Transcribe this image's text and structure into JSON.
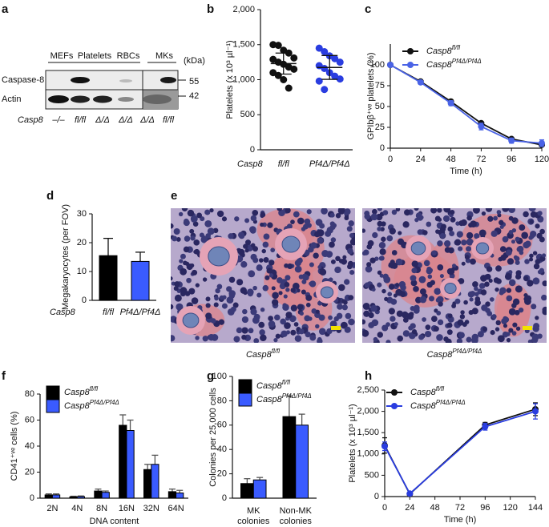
{
  "blot": {
    "panel": "a",
    "groups": [
      "MEFs",
      "Platelets",
      "RBCs",
      "MKs"
    ],
    "unit": "(kDa)",
    "rows": [
      "Caspase-8",
      "Actin"
    ],
    "markers": [
      "55",
      "42"
    ],
    "genotype_label": "Casp8",
    "lanes": [
      "–/–",
      "fl/fl",
      "Δ/Δ",
      "Δ/Δ",
      "Δ/Δ",
      "fl/fl"
    ]
  },
  "micrographs": {
    "panel": "e",
    "captions": [
      {
        "name": "Casp8",
        "superscript": "fl/fl"
      },
      {
        "name": "Casp8",
        "superscript": "Pf4Δ/Pf4Δ"
      }
    ]
  },
  "chart_data": [
    {
      "panel": "b",
      "type": "dot",
      "y_label": "Platelets (x 10³ µl⁻¹)",
      "row_label": "Casp8",
      "categories": [
        "fl/fl",
        "Pf4Δ/Pf4Δ"
      ],
      "colors": [
        "#111111",
        "#2a3de0"
      ],
      "points": [
        [
          1500,
          1490,
          1420,
          1380,
          1310,
          1290,
          1250,
          1220,
          1180,
          1150,
          1100,
          1060,
          1000,
          880
        ],
        [
          1450,
          1400,
          1340,
          1300,
          1250,
          1200,
          1160,
          1100,
          1050,
          1010,
          980,
          860
        ]
      ],
      "means": [
        1230,
        1175
      ],
      "sd": [
        150,
        170
      ],
      "ylim": [
        0,
        2000
      ],
      "yticks": [
        0,
        500,
        {
          "value": 1000,
          "label": "1,000"
        },
        {
          "value": 1500,
          "label": "1,500"
        },
        {
          "value": 2000,
          "label": "2,000"
        }
      ]
    },
    {
      "panel": "c",
      "type": "line",
      "x_label": "Time (h)",
      "y_label": "GPIbβ⁺ᵛᵉ platelets (%)",
      "x": [
        0,
        24,
        48,
        72,
        96,
        120
      ],
      "xlim": [
        0,
        120
      ],
      "xticks": [
        0,
        24,
        48,
        72,
        96,
        120
      ],
      "ylim": [
        0,
        125
      ],
      "yticks": [
        0,
        25,
        50,
        75,
        100
      ],
      "series": [
        {
          "name": "Casp8",
          "superscript": "fl/fl",
          "color": "#111111",
          "values": [
            100,
            80,
            56,
            30,
            11,
            4
          ],
          "errors": [
            1,
            2,
            2,
            2,
            2,
            2
          ]
        },
        {
          "name": "Casp8",
          "superscript": "Pf4Δ/Pf4Δ",
          "color": "#4a63e6",
          "values": [
            100,
            79,
            54,
            26,
            9,
            6
          ],
          "errors": [
            1,
            2,
            3,
            4,
            3,
            4
          ]
        }
      ]
    },
    {
      "panel": "d",
      "type": "bar",
      "y_label": "Megakaryocytes (per FOV)",
      "row_label": "Casp8",
      "categories": [
        "fl/fl",
        "Pf4Δ/Pf4Δ"
      ],
      "values": [
        15.5,
        13.5
      ],
      "errors": [
        6,
        3.2
      ],
      "colors": [
        "#000000",
        "#3a5bff"
      ],
      "ylim": [
        0,
        30
      ],
      "yticks": [
        0,
        10,
        20,
        30
      ]
    },
    {
      "panel": "f",
      "type": "grouped_bar",
      "x_label": "DNA content",
      "y_label": "CD41⁺ᵛᵉ cells (%)",
      "categories": [
        "2N",
        "4N",
        "8N",
        "16N",
        "32N",
        "64N"
      ],
      "ylim": [
        0,
        80
      ],
      "yticks": [
        0,
        20,
        40,
        60,
        80
      ],
      "series": [
        {
          "name": "Casp8",
          "superscript": "fl/fl",
          "color": "#000000",
          "values": [
            2.5,
            1,
            5.5,
            56,
            22,
            5
          ],
          "errors": [
            0.8,
            0.5,
            1.5,
            8,
            4,
            2
          ]
        },
        {
          "name": "Casp8",
          "superscript": "Pf4Δ/Pf4Δ",
          "color": "#3a5bff",
          "values": [
            2.5,
            1.2,
            4.5,
            52,
            26,
            4
          ],
          "errors": [
            0.8,
            0.5,
            1,
            8,
            7,
            2
          ]
        }
      ]
    },
    {
      "panel": "g",
      "type": "grouped_bar",
      "y_label": "Colonies per 25,000 cells",
      "categories": [
        [
          "MK",
          "colonies"
        ],
        [
          "Non-MK",
          "colonies"
        ]
      ],
      "ylim": [
        0,
        100
      ],
      "yticks": [
        0,
        20,
        40,
        60,
        80,
        100
      ],
      "series": [
        {
          "name": "Casp8",
          "superscript": "fl/fl",
          "color": "#000000",
          "values": [
            12,
            67
          ],
          "errors": [
            4,
            17
          ]
        },
        {
          "name": "Casp8",
          "superscript": "Pf4Δ/Pf4Δ",
          "color": "#3a5bff",
          "values": [
            15,
            60
          ],
          "errors": [
            2,
            9
          ]
        }
      ]
    },
    {
      "panel": "h",
      "type": "line",
      "x_label": "Time (h)",
      "y_label": "Platelets (x 10³ µl⁻¹)",
      "x": [
        0,
        24,
        96,
        144
      ],
      "xlim": [
        0,
        144
      ],
      "xticks": [
        0,
        24,
        48,
        72,
        96,
        120,
        144
      ],
      "ylim": [
        0,
        2500
      ],
      "yticks": [
        0,
        500,
        {
          "value": 1000,
          "label": "1,000"
        },
        {
          "value": 1500,
          "label": "1,500"
        },
        {
          "value": 2000,
          "label": "2,000"
        },
        {
          "value": 2500,
          "label": "2,500"
        }
      ],
      "series": [
        {
          "name": "Casp8",
          "superscript": "fl/fl",
          "color": "#111111",
          "values": [
            1200,
            60,
            1680,
            2050
          ],
          "errors": [
            180,
            20,
            60,
            150
          ]
        },
        {
          "name": "Casp8",
          "superscript": "Pf4Δ/Pf4Δ",
          "color": "#2a3de0",
          "values": [
            1180,
            70,
            1640,
            2000
          ],
          "errors": [
            100,
            20,
            80,
            180
          ]
        }
      ]
    }
  ]
}
